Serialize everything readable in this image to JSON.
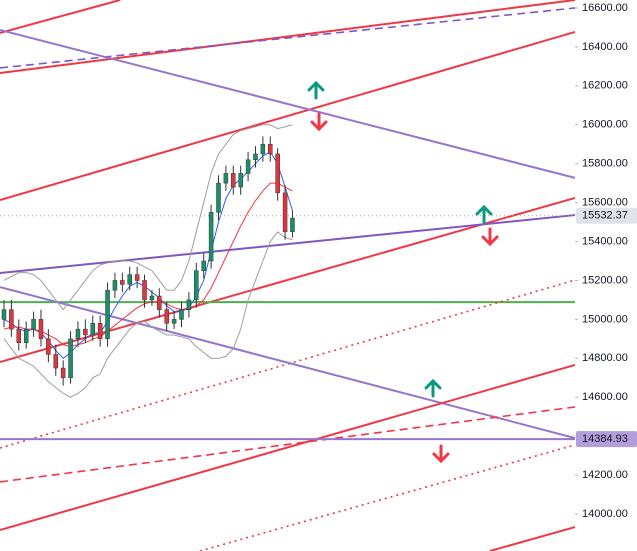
{
  "chart_data": {
    "type": "candlestick",
    "ylim": [
      13810,
      16641
    ],
    "xlim": [
      -0.54,
      77.2
    ],
    "yticks": [
      {
        "value": 14000,
        "label": "14000.00"
      },
      {
        "value": 14200,
        "label": "14200.00"
      },
      {
        "value": 14400,
        "label": "14400.00"
      },
      {
        "value": 14600,
        "label": "14600.00"
      },
      {
        "value": 14800,
        "label": "14800.00"
      },
      {
        "value": 15000,
        "label": "15000.00"
      },
      {
        "value": 15200,
        "label": "15200.00"
      },
      {
        "value": 15400,
        "label": "15400.00"
      },
      {
        "value": 15600,
        "label": "15600.00"
      },
      {
        "value": 15800,
        "label": "15800.00"
      },
      {
        "value": 16000,
        "label": "16000.00"
      },
      {
        "value": 16200,
        "label": "16200.00"
      },
      {
        "value": 16400,
        "label": "16400.00"
      },
      {
        "value": 16600,
        "label": "16600.00"
      }
    ],
    "up_color": "#1b8f6a",
    "down_color": "#e0343f",
    "open": [
      15000,
      15050,
      14950,
      14880,
      14950,
      15000,
      14900,
      14820,
      14750,
      14700,
      14900,
      14950,
      14920,
      14980,
      14900,
      15150,
      15200,
      15180,
      15230,
      15200,
      15100,
      15120,
      15050,
      14980,
      15000,
      15050,
      15100,
      15250,
      15300,
      15550,
      15700,
      15750,
      15680,
      15750,
      15820,
      15850,
      15900,
      15850,
      15650,
      15450
    ],
    "high": [
      15100,
      15100,
      15000,
      14990,
      15040,
      15050,
      14950,
      14870,
      14790,
      14940,
      14990,
      15000,
      15020,
      15020,
      15190,
      15240,
      15240,
      15270,
      15270,
      15230,
      15150,
      15160,
      15090,
      15040,
      15090,
      15140,
      15290,
      15340,
      15590,
      15740,
      15790,
      15790,
      15790,
      15860,
      15890,
      15940,
      15940,
      15880,
      15690,
      15560
    ],
    "low": [
      14960,
      14910,
      14840,
      14850,
      14910,
      14860,
      14780,
      14710,
      14660,
      14670,
      14860,
      14880,
      14890,
      14860,
      14860,
      15110,
      15140,
      15150,
      15160,
      15060,
      15070,
      15010,
      14940,
      14950,
      14960,
      15010,
      15060,
      15210,
      15260,
      15510,
      15660,
      15640,
      15640,
      15710,
      15780,
      15810,
      15810,
      15610,
      15410,
      15420
    ],
    "close": [
      15050,
      14950,
      14880,
      14950,
      15000,
      14900,
      14820,
      14750,
      14700,
      14900,
      14950,
      14920,
      14980,
      14900,
      15150,
      15200,
      15180,
      15230,
      15200,
      15100,
      15120,
      15050,
      14980,
      15000,
      15050,
      15100,
      15250,
      15300,
      15550,
      15700,
      15750,
      15680,
      15750,
      15820,
      15850,
      15900,
      15850,
      15650,
      15450,
      15520
    ],
    "overlays": [
      {
        "color": "#9e9e9e",
        "values": [
          15200,
          15220,
          15240,
          15240,
          15230,
          15200,
          15150,
          15100,
          15050,
          15100,
          15150,
          15200,
          15250,
          15280,
          15290,
          15300,
          15300,
          15300,
          15290,
          15270,
          15250,
          15200,
          15150,
          15150,
          15200,
          15300,
          15450,
          15600,
          15750,
          15850,
          15900,
          15950,
          15970,
          15980,
          15990,
          16000,
          16000,
          15980,
          15990,
          16000
        ]
      },
      {
        "color": "#9e9e9e",
        "values": [
          14900,
          14850,
          14800,
          14780,
          14760,
          14720,
          14680,
          14650,
          14620,
          14600,
          14620,
          14650,
          14700,
          14720,
          14800,
          14850,
          14900,
          14950,
          14980,
          14990,
          14960,
          14940,
          14920,
          14920,
          14910,
          14900,
          14860,
          14830,
          14800,
          14800,
          14810,
          14850,
          14950,
          15100,
          15200,
          15300,
          15400,
          15450,
          15420,
          15410
        ]
      },
      {
        "color": "#2962ff",
        "values": [
          15000,
          14980,
          14950,
          14940,
          14950,
          14930,
          14890,
          14840,
          14800,
          14830,
          14870,
          14900,
          14930,
          14930,
          14990,
          15060,
          15120,
          15170,
          15190,
          15170,
          15140,
          15110,
          15070,
          15040,
          15040,
          15060,
          15120,
          15200,
          15350,
          15500,
          15620,
          15690,
          15720,
          15760,
          15800,
          15840,
          15860,
          15800,
          15680,
          15560
        ]
      },
      {
        "color": "#f23645",
        "values": [
          14950,
          14960,
          14960,
          14950,
          14950,
          14940,
          14920,
          14900,
          14870,
          14860,
          14870,
          14880,
          14900,
          14910,
          14940,
          14970,
          15000,
          15030,
          15060,
          15080,
          15090,
          15090,
          15080,
          15060,
          15050,
          15050,
          15070,
          15100,
          15160,
          15240,
          15320,
          15400,
          15480,
          15550,
          15610,
          15660,
          15700,
          15700,
          15680,
          15660
        ]
      }
    ],
    "lines": [
      {
        "color": "#f23645",
        "style": "solid",
        "points": [
          [
            -0.54,
            16472
          ],
          [
            15.7,
            16641
          ]
        ]
      },
      {
        "color": "#f23645",
        "style": "solid",
        "points": [
          [
            -0.54,
            16266
          ],
          [
            77.2,
            16641
          ]
        ]
      },
      {
        "color": "#7e57c2",
        "style": "dashed",
        "points": [
          [
            -0.54,
            16292
          ],
          [
            77.2,
            16600
          ]
        ]
      },
      {
        "color": "#f23645",
        "style": "solid",
        "points": [
          [
            -0.54,
            15613
          ],
          [
            77.2,
            16477
          ]
        ]
      },
      {
        "color": "#9575cd",
        "style": "solid",
        "points": [
          [
            -0.54,
            16487
          ],
          [
            77.2,
            15727
          ]
        ]
      },
      {
        "color": "#f23645",
        "style": "solid",
        "points": [
          [
            -0.54,
            14781
          ],
          [
            77.2,
            15624
          ]
        ]
      },
      {
        "color": "#7e57c2",
        "style": "solid",
        "points": [
          [
            -0.54,
            15238
          ],
          [
            77.2,
            15536
          ]
        ]
      },
      {
        "color": "#4caf50",
        "style": "solid",
        "points": [
          [
            -0.54,
            15089
          ],
          [
            77.2,
            15089
          ]
        ]
      },
      {
        "color": "#f23645",
        "style": "dotted",
        "points": [
          [
            -0.54,
            14339
          ],
          [
            77.2,
            15202
          ]
        ]
      },
      {
        "color": "#9575cd",
        "style": "solid",
        "points": [
          [
            -0.54,
            15166
          ],
          [
            77.2,
            14390
          ]
        ]
      },
      {
        "color": "#f23645",
        "style": "solid",
        "points": [
          [
            -0.54,
            13918
          ],
          [
            77.2,
            14766
          ]
        ]
      },
      {
        "color": "#f23645",
        "style": "dashed",
        "points": [
          [
            -0.54,
            14165
          ],
          [
            77.2,
            14550
          ]
        ]
      },
      {
        "color": "#9575cd",
        "style": "solid",
        "points": [
          [
            -0.54,
            14385
          ],
          [
            77.2,
            14385
          ]
        ]
      },
      {
        "color": "#f23645",
        "style": "dotted",
        "points": [
          [
            26.5,
            13810
          ],
          [
            77.2,
            14355
          ]
        ]
      },
      {
        "color": "#f23645",
        "style": "solid",
        "points": [
          [
            65.7,
            13810
          ],
          [
            77.2,
            13933
          ]
        ]
      }
    ],
    "price_labels": [
      {
        "value": 15532.37,
        "label": "15532.37",
        "color": "#e0e3eb",
        "text_color": "#131722",
        "line": true
      },
      {
        "value": 14384.93,
        "label": "14384.93",
        "color": "#b39ddb",
        "text_color": "#131722",
        "line": false
      }
    ]
  }
}
